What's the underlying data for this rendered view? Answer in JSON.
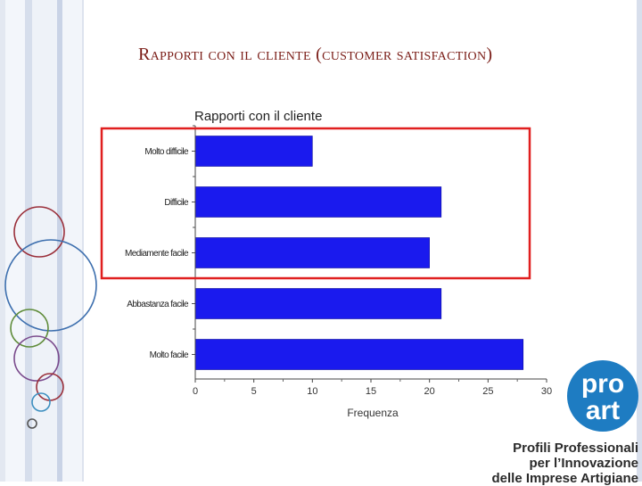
{
  "slide": {
    "title": "Rapporti con il cliente (customer satisfaction)"
  },
  "logo": {
    "text_line1": "pro",
    "text_line2": "art",
    "caption": [
      "Profili Professionali",
      "per l’Innovazione",
      "delle Imprese Artigiane"
    ],
    "color": "#1e7cc2"
  },
  "highlight": {
    "color": "#e01f1f"
  },
  "chart_data": {
    "type": "bar",
    "orientation": "horizontal",
    "title": "Rapporti con il cliente",
    "xlabel": "Frequenza",
    "ylabel": "",
    "categories": [
      "Molto difficile",
      "Difficile",
      "Mediamente facile",
      "Abbastanza facile",
      "Molto facile"
    ],
    "values": [
      10,
      21,
      20,
      21,
      28
    ],
    "xlim": [
      0,
      30
    ],
    "xticks": [
      0,
      5,
      10,
      15,
      20,
      25,
      30
    ],
    "bar_color": "#1a1aee",
    "grid": false,
    "legend": "none"
  }
}
